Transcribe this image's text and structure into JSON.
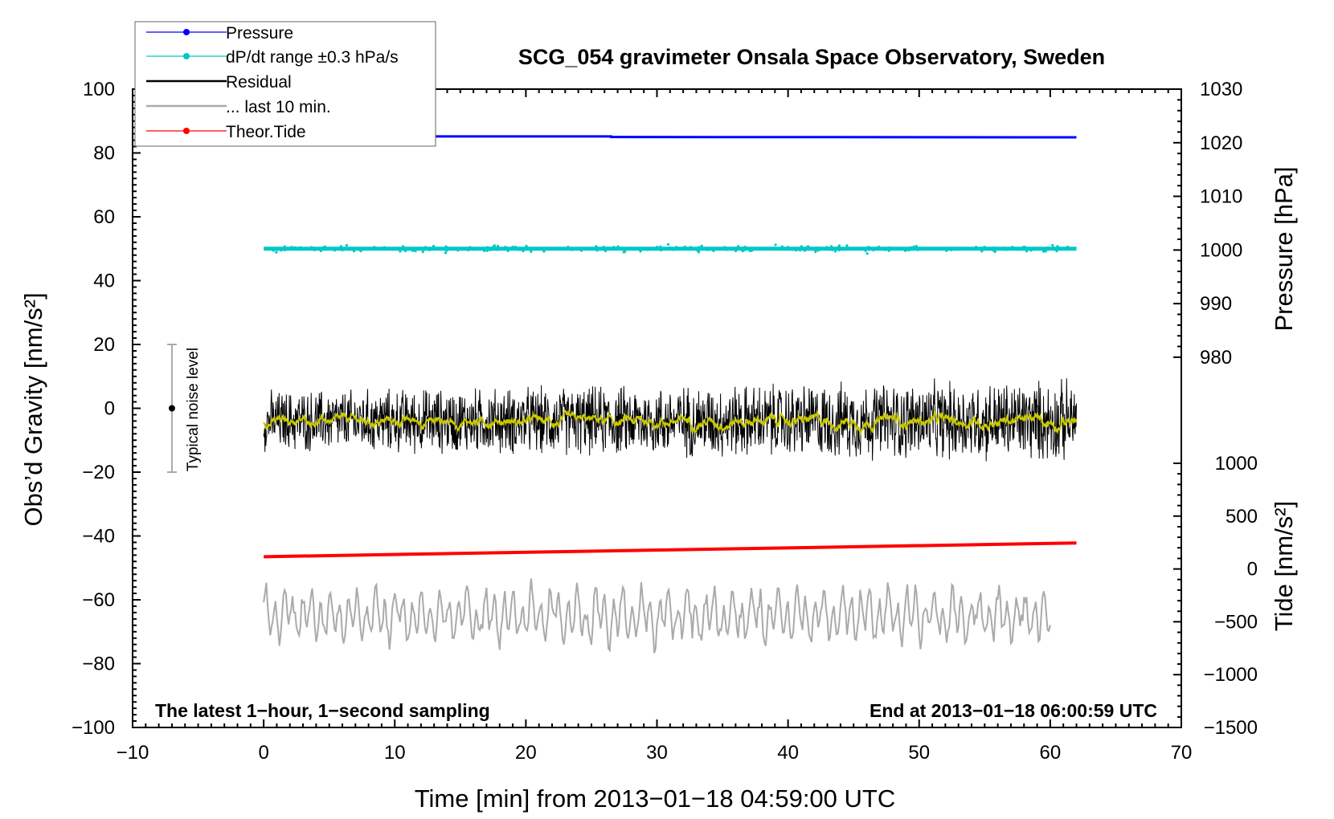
{
  "chart_data": {
    "type": "line",
    "title": "SCG_054 gravimeter Onsala Space Observatory, Sweden",
    "xlabel": "Time [min] from 2013−01−18 04:59:00 UTC",
    "ylabel_left": "Obs’d Gravity [nm/s²]",
    "ylabel_right_pressure": "Pressure [hPa]",
    "ylabel_right_tide": "Tide [nm/s²]",
    "xlim": [
      -10,
      70
    ],
    "ylim": [
      -100,
      100
    ],
    "x_ticks": [
      "−10",
      "0",
      "10",
      "20",
      "30",
      "40",
      "50",
      "60",
      "70"
    ],
    "y_ticks": [
      "−100",
      "−80",
      "−60",
      "−40",
      "−20",
      "0",
      "20",
      "40",
      "60",
      "80",
      "100"
    ],
    "pressure_ticks": [
      "980",
      "990",
      "1000",
      "1010",
      "1020",
      "1030"
    ],
    "tide_ticks": [
      "−1500",
      "−1000",
      "−500",
      "0",
      "500",
      "1000"
    ],
    "legend_position": "top-left",
    "grid": false,
    "footer_left": "The latest 1−hour, 1−second sampling",
    "footer_right": "End at 2013−01−18 06:00:59 UTC",
    "noise_label": "Typical noise level",
    "noise_bar": {
      "x": -7,
      "center": 0,
      "low": -20,
      "high": 20
    },
    "series": [
      {
        "name": "Pressure",
        "color": "#0000ff",
        "x_range": [
          0,
          62
        ],
        "y_start": 85.2,
        "y_end": 84.9,
        "legend_style": "line-dot"
      },
      {
        "name": "dP/dt range ±0.3 hPa/s",
        "color": "#00c8c8",
        "x_range": [
          0,
          62
        ],
        "y_center": 50,
        "spread": 0.6,
        "legend_style": "line-dot"
      },
      {
        "name": "Residual",
        "color": "#000000",
        "x_range": [
          0,
          62
        ],
        "y_center": -4,
        "amplitude": 9,
        "legend_style": "line"
      },
      {
        "name": "... last 10 min.",
        "color": "#aaaaaa",
        "x_range": [
          0,
          60
        ],
        "y_center": -65,
        "amplitude": 9,
        "legend_style": "line"
      },
      {
        "name": "Theor.Tide",
        "color": "#ff0000",
        "x_range": [
          0,
          62
        ],
        "y_start": -46.5,
        "y_end": -42.2,
        "legend_style": "line-dot"
      }
    ],
    "smoothed_residual_color": "#c8c800"
  }
}
